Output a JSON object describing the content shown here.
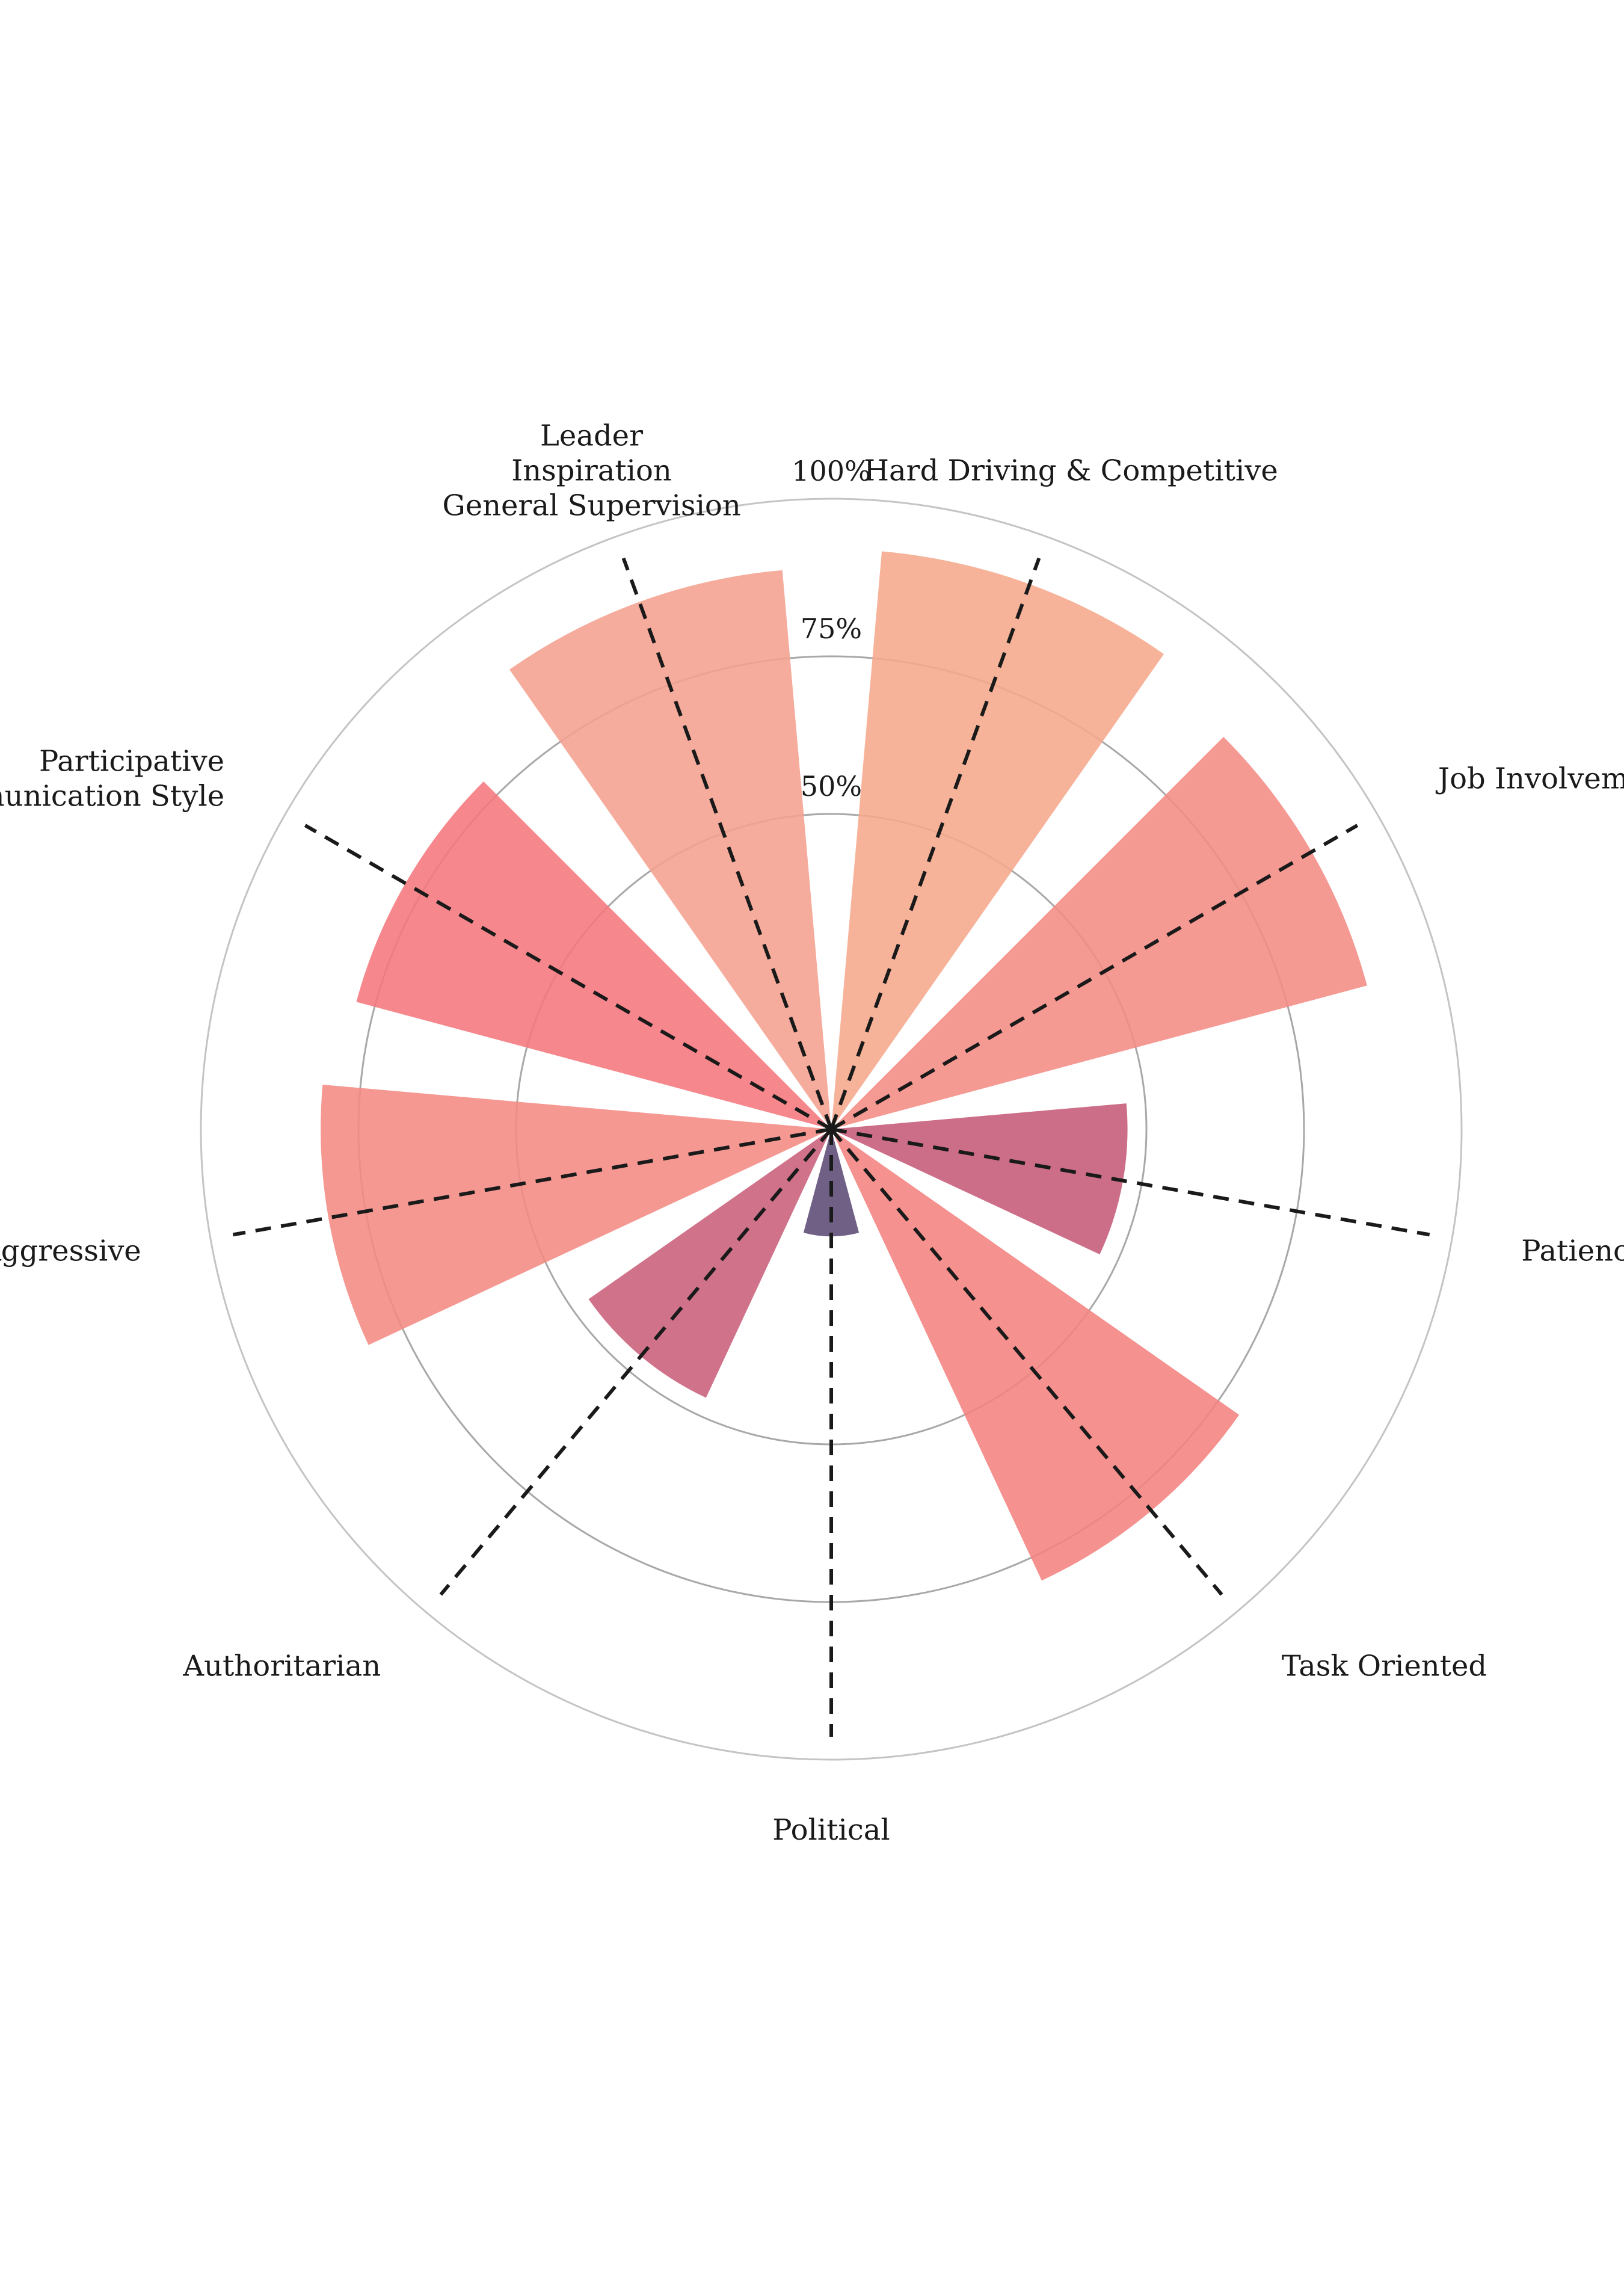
{
  "chart_data": {
    "type": "polar-bar",
    "title": "",
    "radial_axis": {
      "min": 0,
      "max": 100,
      "ticks": [
        50,
        75,
        100
      ],
      "tick_labels": [
        "50%",
        "75%",
        "100%"
      ]
    },
    "categories": [
      {
        "label_lines": [
          "Hard Driving & Competitive"
        ],
        "value": 92,
        "color": "#f5a98c"
      },
      {
        "label_lines": [
          "Job Involvement"
        ],
        "value": 88,
        "color": "#f48b84"
      },
      {
        "label_lines": [
          "Patience"
        ],
        "value": 47,
        "color": "#c55a78"
      },
      {
        "label_lines": [
          "Task Oriented"
        ],
        "value": 79,
        "color": "#f48380"
      },
      {
        "label_lines": [
          "Political"
        ],
        "value": 17,
        "color": "#5c4a74"
      },
      {
        "label_lines": [
          "Authoritarian"
        ],
        "value": 47,
        "color": "#c85e7a"
      },
      {
        "label_lines": [
          "Aggressive"
        ],
        "value": 81,
        "color": "#f48a83"
      },
      {
        "label_lines": [
          "Participative",
          "Communication Style"
        ],
        "value": 78,
        "color": "#f5777d"
      },
      {
        "label_lines": [
          "Leader",
          "Inspiration",
          "General Supervision"
        ],
        "value": 89,
        "color": "#f4a08e"
      }
    ],
    "grid": true,
    "gridline_style": "dashed spokes"
  }
}
